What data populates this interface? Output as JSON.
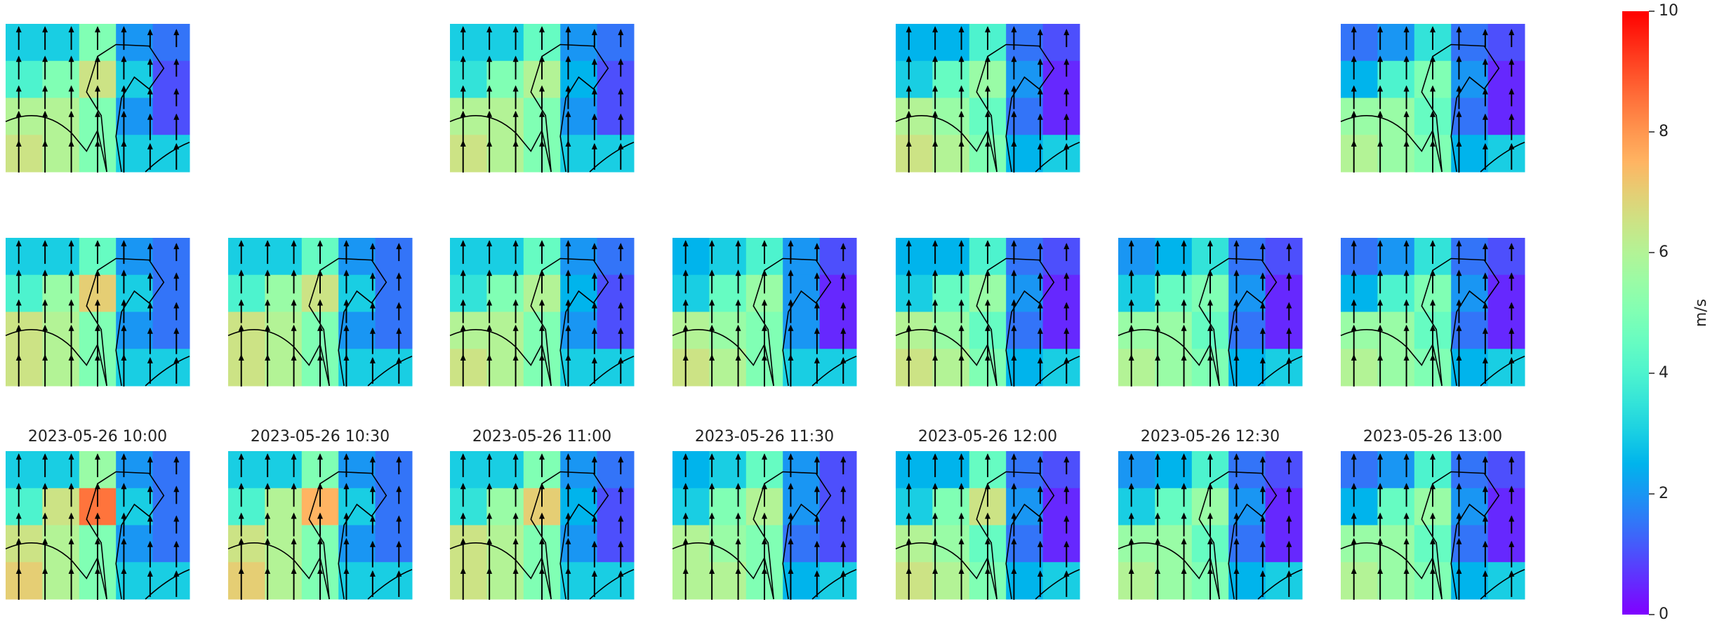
{
  "chart_data": {
    "type": "heatmap-grid",
    "titles": [
      "2023-05-26 10:00",
      "2023-05-26 10:30",
      "2023-05-26 11:00",
      "2023-05-26 11:30",
      "2023-05-26 12:00",
      "2023-05-26 12:30",
      "2023-05-26 13:00"
    ],
    "colorbar": {
      "label": "m/s",
      "lim": [
        0,
        10
      ],
      "ticks": [
        0,
        2,
        4,
        6,
        8,
        10
      ]
    },
    "rows": [
      {
        "panels": [
          {
            "values": [
              [
                3,
                3,
                5,
                2,
                1.5
              ],
              [
                4,
                5,
                6.5,
                3,
                1
              ],
              [
                6,
                6,
                5,
                2,
                1
              ],
              [
                6.5,
                6,
                5,
                3,
                3
              ]
            ]
          },
          null,
          {
            "values": [
              [
                3,
                3,
                4.5,
                2,
                1.5
              ],
              [
                3.5,
                5,
                6,
                2.5,
                1
              ],
              [
                6,
                6,
                5,
                2,
                1
              ],
              [
                6.5,
                6,
                5,
                3,
                3
              ]
            ]
          },
          null,
          {
            "values": [
              [
                2.5,
                2.5,
                4,
                1.5,
                1
              ],
              [
                3,
                4.5,
                5.5,
                2,
                0.5
              ],
              [
                6,
                5.5,
                4.5,
                1.5,
                0.5
              ],
              [
                6.5,
                6,
                5,
                2.5,
                3
              ]
            ]
          },
          null,
          {
            "values": [
              [
                1.5,
                2,
                3.5,
                1.5,
                1
              ],
              [
                2.5,
                4,
                5,
                2,
                0.5
              ],
              [
                5.5,
                5.5,
                4.5,
                1.5,
                0.5
              ],
              [
                6,
                5.5,
                5,
                2.5,
                3
              ]
            ]
          }
        ]
      },
      {
        "panels": [
          {
            "values": [
              [
                3,
                3,
                4.5,
                2,
                1.5
              ],
              [
                4,
                5.5,
                7,
                3,
                1.5
              ],
              [
                6.5,
                6,
                5,
                2,
                1.5
              ],
              [
                6.5,
                6,
                5,
                3,
                3
              ]
            ]
          },
          {
            "values": [
              [
                3,
                3,
                4.5,
                2,
                1.5
              ],
              [
                4,
                5.5,
                6.5,
                3,
                1.5
              ],
              [
                6.5,
                6,
                5,
                2,
                1.5
              ],
              [
                6.5,
                6,
                5,
                3,
                3
              ]
            ]
          },
          {
            "values": [
              [
                3,
                3,
                4.5,
                2,
                1.5
              ],
              [
                3.5,
                5,
                6,
                2.5,
                1
              ],
              [
                6,
                6,
                5,
                2,
                1
              ],
              [
                6.5,
                6,
                5,
                3,
                3
              ]
            ]
          },
          {
            "values": [
              [
                2.5,
                3,
                4,
                2,
                1
              ],
              [
                3,
                4.5,
                5.5,
                2,
                0.5
              ],
              [
                6,
                5.5,
                5,
                2,
                0.5
              ],
              [
                6.5,
                6,
                5,
                3,
                3
              ]
            ]
          },
          {
            "values": [
              [
                2.5,
                2.5,
                4,
                1.5,
                1
              ],
              [
                3,
                4.5,
                5.5,
                2,
                0.5
              ],
              [
                6,
                5.5,
                4.5,
                1.5,
                0.5
              ],
              [
                6.5,
                6,
                5,
                2.5,
                3
              ]
            ]
          },
          {
            "values": [
              [
                2,
                2.5,
                3.5,
                1.5,
                1
              ],
              [
                3,
                4.5,
                5,
                2,
                0.5
              ],
              [
                5.5,
                5.5,
                4.5,
                1.5,
                0.5
              ],
              [
                6,
                5.5,
                5,
                2.5,
                3
              ]
            ]
          },
          {
            "values": [
              [
                1.5,
                2,
                3.5,
                1.5,
                1
              ],
              [
                2.5,
                4,
                5,
                2,
                0.5
              ],
              [
                5.5,
                5.5,
                4.5,
                1.5,
                0.5
              ],
              [
                6,
                5.5,
                5,
                2.5,
                3
              ]
            ]
          }
        ]
      },
      {
        "panels": [
          {
            "values": [
              [
                3,
                3,
                5.5,
                2,
                1.5
              ],
              [
                4,
                6.5,
                8.5,
                3,
                1.5
              ],
              [
                6.5,
                6,
                5,
                2,
                1.5
              ],
              [
                7,
                6,
                5,
                3,
                3
              ]
            ]
          },
          {
            "values": [
              [
                3,
                3,
                5,
                2,
                1.5
              ],
              [
                4,
                6,
                7.5,
                3,
                1.5
              ],
              [
                6.5,
                6,
                5,
                2,
                1.5
              ],
              [
                7,
                6,
                5,
                3,
                3
              ]
            ]
          },
          {
            "values": [
              [
                3,
                3,
                5,
                2,
                1.5
              ],
              [
                3.5,
                5.5,
                7,
                2.5,
                1
              ],
              [
                6.5,
                6,
                5,
                2,
                1
              ],
              [
                6.5,
                6,
                5,
                3,
                3
              ]
            ]
          },
          {
            "values": [
              [
                2.5,
                3,
                4.5,
                2,
                1
              ],
              [
                3,
                5,
                6,
                2,
                1
              ],
              [
                6,
                5.5,
                5,
                1.5,
                1
              ],
              [
                6,
                6,
                5,
                2.5,
                3
              ]
            ]
          },
          {
            "values": [
              [
                2.5,
                2.5,
                4.5,
                1.5,
                1
              ],
              [
                3,
                5,
                6.5,
                2,
                0.5
              ],
              [
                6,
                5.5,
                4.5,
                1.5,
                0.5
              ],
              [
                6.5,
                6,
                5,
                2.5,
                3
              ]
            ]
          },
          {
            "values": [
              [
                2,
                2.5,
                4,
                1.5,
                1
              ],
              [
                3,
                4.5,
                5.5,
                2,
                0.5
              ],
              [
                5.5,
                5.5,
                4.5,
                1.5,
                0.5
              ],
              [
                6,
                5.5,
                5,
                2.5,
                3
              ]
            ]
          },
          {
            "values": [
              [
                1.5,
                2,
                4,
                1.5,
                1
              ],
              [
                2.5,
                4.5,
                5.5,
                2,
                0.5
              ],
              [
                5.5,
                5.5,
                4.5,
                1.5,
                0.5
              ],
              [
                6,
                5.5,
                5,
                2.5,
                3
              ]
            ]
          }
        ]
      }
    ]
  }
}
